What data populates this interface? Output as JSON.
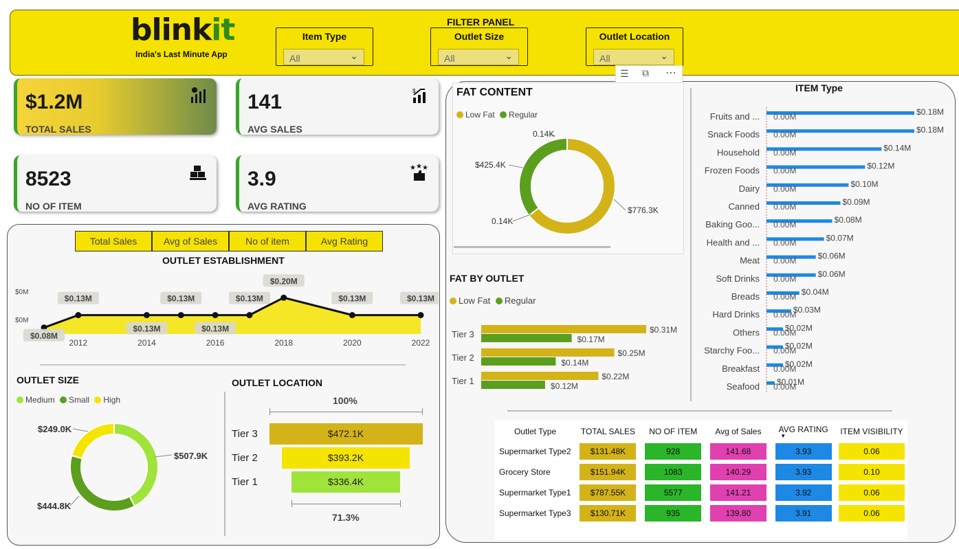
{
  "brand": {
    "logo_main": "blink",
    "logo_accent": "it",
    "tagline": "India's Last Minute App"
  },
  "filter_panel": {
    "title": "FILTER PANEL",
    "filters": [
      {
        "label": "Item Type",
        "value": "All"
      },
      {
        "label": "Outlet Size",
        "value": "All"
      },
      {
        "label": "Outlet Location",
        "value": "All"
      }
    ]
  },
  "kpis": [
    {
      "value": "$1.2M",
      "label": "TOTAL SALES",
      "icon": "bar-chart-dollar-icon"
    },
    {
      "value": "141",
      "label": "AVG SALES",
      "icon": "growth-chart-icon"
    },
    {
      "value": "8523",
      "label": "NO OF ITEM",
      "icon": "boxes-icon"
    },
    {
      "value": "3.9",
      "label": "AVG RATING",
      "icon": "rating-stars-icon"
    }
  ],
  "tabs": [
    "Total Sales",
    "Avg of Sales",
    "No of item",
    "Avg Rating"
  ],
  "visual_header_icons": [
    "filter-icon",
    "focus-mode-icon",
    "more-options-icon"
  ],
  "colors": {
    "yellow": "#f5e200",
    "green": "#3aa52a",
    "gold": "#d4b319",
    "leaf": "#5c9e1e",
    "lime": "#a0e33a",
    "blue": "#1e88e5",
    "pink": "#e040b0",
    "bright_green": "#2ab52a"
  },
  "chart_data": [
    {
      "id": "outlet_establishment",
      "type": "area",
      "title": "OUTLET ESTABLISHMENT",
      "x": [
        2011,
        2012,
        2014,
        2015,
        2016,
        2017,
        2018,
        2020,
        2022
      ],
      "values": [
        0.08,
        0.13,
        0.13,
        0.13,
        0.13,
        0.13,
        0.2,
        0.13,
        0.13
      ],
      "labels": [
        "$0.08M",
        "$0.13M",
        "$0.13M",
        "$0.13M",
        "$0.13M",
        "$0.13M",
        "$0.20M",
        "$0.13M",
        "$0.13M"
      ],
      "xticks": [
        "2012",
        "2014",
        "2016",
        "2018",
        "2020",
        "2022"
      ],
      "yticks": [
        "$0M",
        "$0M"
      ]
    },
    {
      "id": "fat_content",
      "type": "pie",
      "title": "FAT CONTENT",
      "categories": [
        "Low Fat",
        "Regular"
      ],
      "values": [
        776.3,
        425.4
      ],
      "labels": [
        "$776.3K",
        "$425.4K"
      ],
      "extra_labels": [
        "0.14K",
        "0.14K"
      ]
    },
    {
      "id": "fat_by_outlet",
      "type": "bar",
      "title": "FAT BY OUTLET",
      "categories": [
        "Tier 3",
        "Tier 2",
        "Tier 1"
      ],
      "series": [
        {
          "name": "Low Fat",
          "values": [
            0.31,
            0.25,
            0.22
          ],
          "labels": [
            "$0.31M",
            "$0.25M",
            "$0.22M"
          ]
        },
        {
          "name": "Regular",
          "values": [
            0.17,
            0.14,
            0.12
          ],
          "labels": [
            "$0.17M",
            "$0.14M",
            "$0.12M"
          ]
        }
      ]
    },
    {
      "id": "item_type",
      "type": "bar",
      "title": "ITEM Type",
      "categories": [
        "Fruits and ...",
        "Snack Foods",
        "Household",
        "Frozen Foods",
        "Dairy",
        "Canned",
        "Baking Goo...",
        "Health and ...",
        "Meat",
        "Soft Drinks",
        "Breads",
        "Hard Drinks",
        "Others",
        "Starchy Foo...",
        "Breakfast",
        "Seafood"
      ],
      "values": [
        0.18,
        0.18,
        0.14,
        0.12,
        0.1,
        0.09,
        0.08,
        0.07,
        0.06,
        0.06,
        0.04,
        0.03,
        0.02,
        0.02,
        0.02,
        0.01
      ],
      "labels": [
        "$0.18M",
        "$0.18M",
        "$0.14M",
        "$0.12M",
        "$0.10M",
        "$0.09M",
        "$0.08M",
        "$0.07M",
        "$0.06M",
        "$0.06M",
        "$0.04M",
        "$0.03M",
        "$0.02M",
        "$0.02M",
        "$0.02M",
        "$0.01M"
      ],
      "zero_label": "0.00M"
    },
    {
      "id": "outlet_size",
      "type": "pie",
      "title": "OUTLET SIZE",
      "categories": [
        "Medium",
        "Small",
        "High"
      ],
      "values": [
        507.9,
        444.8,
        249.0
      ],
      "labels": [
        "$507.9K",
        "$444.8K",
        "$249.0K"
      ]
    },
    {
      "id": "outlet_location",
      "type": "bar",
      "title": "OUTLET LOCATION",
      "categories": [
        "Tier 3",
        "Tier 2",
        "Tier 1"
      ],
      "values": [
        472.1,
        393.2,
        336.4
      ],
      "labels": [
        "$472.1K",
        "$393.2K",
        "$336.4K"
      ],
      "top_pct": "100%",
      "bottom_pct": "71.3%"
    },
    {
      "id": "outlet_type_table",
      "type": "table",
      "columns": [
        "Outlet Type",
        "TOTAL SALES",
        "NO OF ITEM",
        "Avg of Sales",
        "AVG RATING",
        "ITEM VISIBILITY"
      ],
      "rows": [
        [
          "Supermarket Type2",
          "$131.48K",
          "928",
          "141.68",
          "3.93",
          "0.06"
        ],
        [
          "Grocery Store",
          "$151.94K",
          "1083",
          "140.29",
          "3.93",
          "0.10"
        ],
        [
          "Supermarket Type1",
          "$787.55K",
          "5577",
          "141.21",
          "3.92",
          "0.06"
        ],
        [
          "Supermarket Type3",
          "$130.71K",
          "935",
          "139.80",
          "3.91",
          "0.06"
        ]
      ]
    }
  ]
}
